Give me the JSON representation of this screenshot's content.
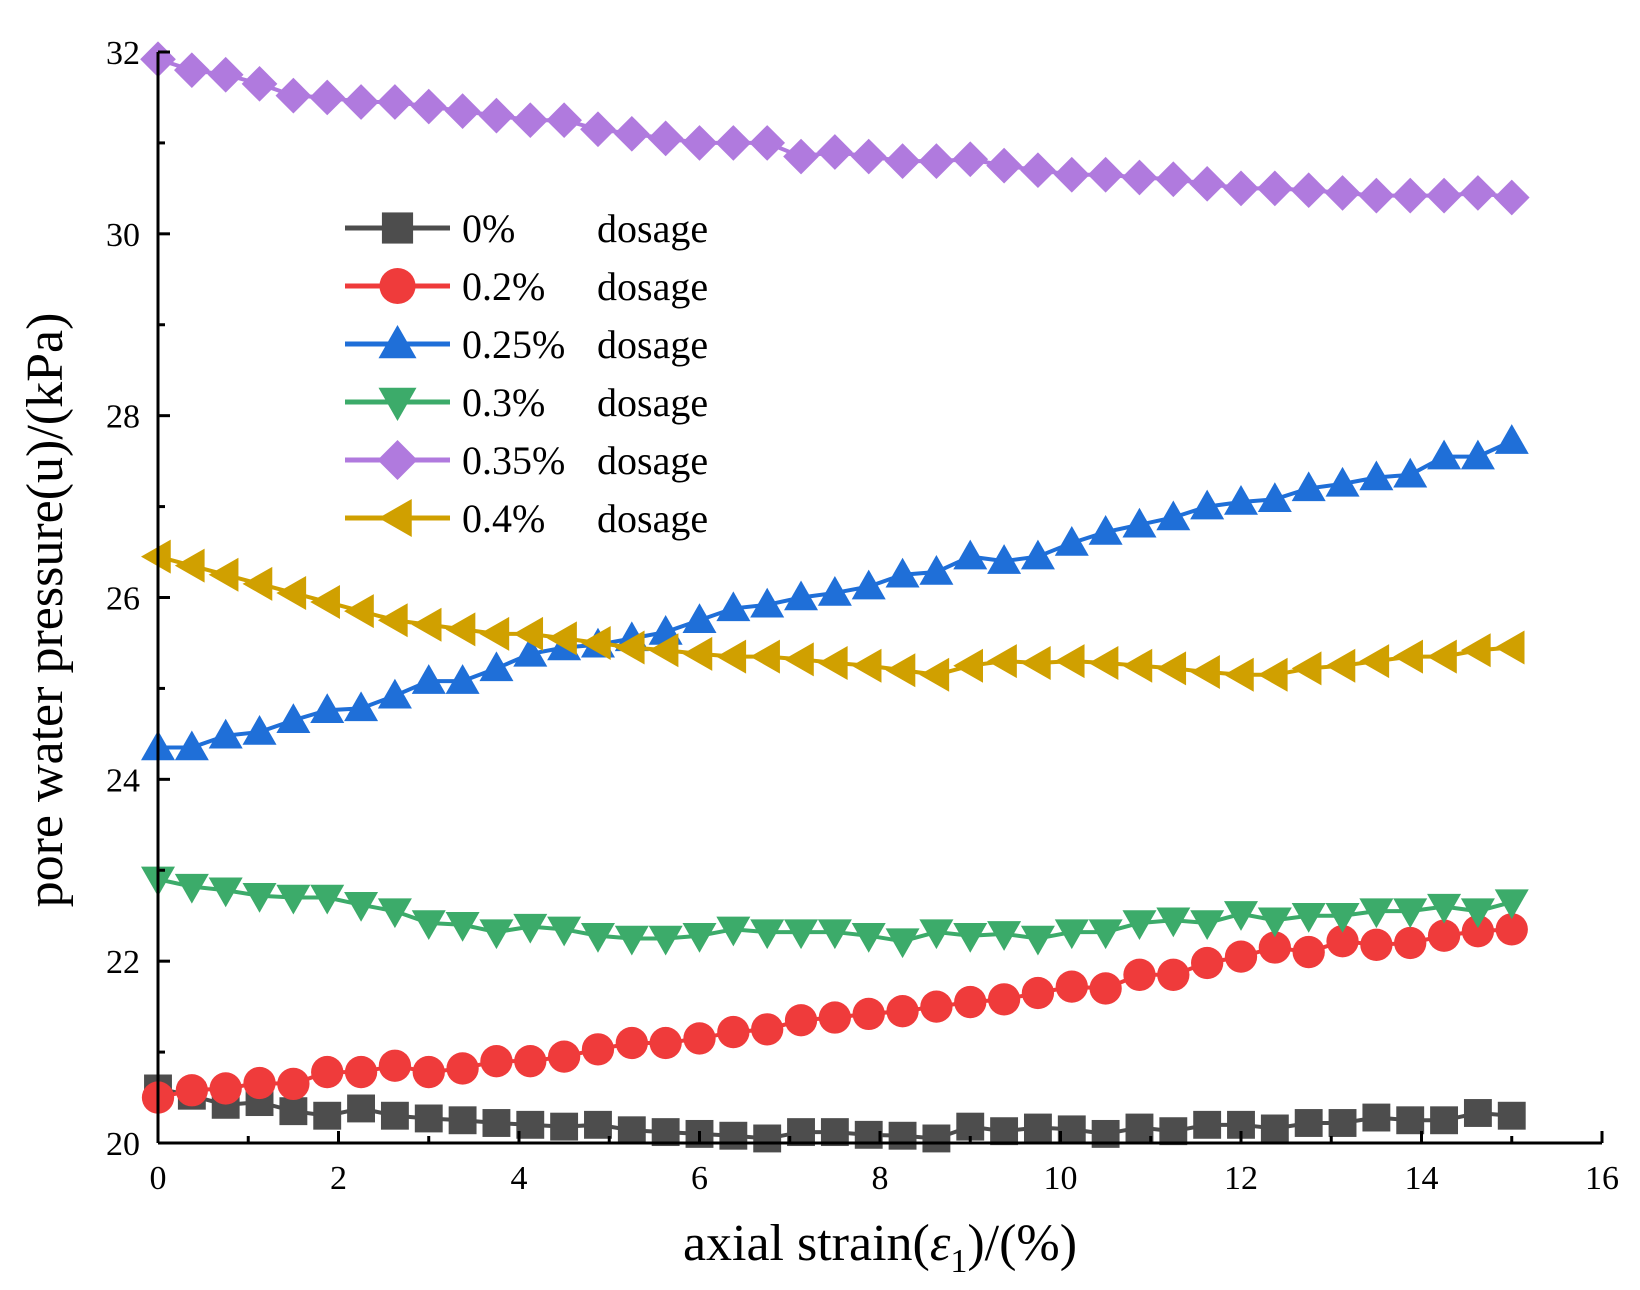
{
  "chart_data": {
    "type": "line",
    "title": "",
    "xlabel": "axial strain(ε1)/(%)",
    "xlabel_parts": {
      "main": "axial strain(",
      "symbol": "ε",
      "sub": "1",
      "tail": ")/(%)"
    },
    "ylabel": "pore water pressure(u)/(kPa)",
    "xlim": [
      0,
      16
    ],
    "ylim": [
      20,
      32
    ],
    "xticks": [
      0,
      2,
      4,
      6,
      8,
      10,
      12,
      14,
      16
    ],
    "yticks": [
      20,
      22,
      24,
      26,
      28,
      30,
      32
    ],
    "grid": false,
    "legend_position": "upper-left",
    "x": [
      0,
      0.375,
      0.75,
      1.125,
      1.5,
      1.875,
      2.25,
      2.625,
      3.0,
      3.375,
      3.75,
      4.125,
      4.5,
      4.875,
      5.25,
      5.625,
      6.0,
      6.375,
      6.75,
      7.125,
      7.5,
      7.875,
      8.25,
      8.625,
      9.0,
      9.375,
      9.75,
      10.125,
      10.5,
      10.875,
      11.25,
      11.625,
      12.0,
      12.375,
      12.75,
      13.125,
      13.5,
      13.875,
      14.25,
      14.625,
      15.0
    ],
    "series": [
      {
        "name": "0%",
        "legend_label": "0%",
        "legend_suffix": "dosage",
        "color": "#4d4d4d",
        "marker": "square",
        "values": [
          20.6,
          20.52,
          20.42,
          20.45,
          20.35,
          20.3,
          20.38,
          20.3,
          20.27,
          20.25,
          20.22,
          20.2,
          20.18,
          20.2,
          20.14,
          20.12,
          20.1,
          20.08,
          20.05,
          20.12,
          20.12,
          20.09,
          20.08,
          20.05,
          20.18,
          20.13,
          20.17,
          20.15,
          20.1,
          20.17,
          20.13,
          20.2,
          20.2,
          20.16,
          20.22,
          20.22,
          20.28,
          20.25,
          20.25,
          20.33,
          20.3
        ]
      },
      {
        "name": "0.2%",
        "legend_label": "0.2%",
        "legend_suffix": "dosage",
        "color": "#ef3b3b",
        "marker": "circle",
        "values": [
          20.5,
          20.58,
          20.6,
          20.66,
          20.65,
          20.78,
          20.78,
          20.85,
          20.78,
          20.82,
          20.9,
          20.9,
          20.95,
          21.03,
          21.1,
          21.1,
          21.15,
          21.22,
          21.25,
          21.35,
          21.38,
          21.42,
          21.45,
          21.5,
          21.55,
          21.58,
          21.65,
          21.72,
          21.7,
          21.85,
          21.85,
          21.98,
          22.05,
          22.15,
          22.1,
          22.22,
          22.18,
          22.2,
          22.28,
          22.33,
          22.35
        ]
      },
      {
        "name": "0.25%",
        "legend_label": "0.25%",
        "legend_suffix": "dosage",
        "color": "#1f6fd8",
        "marker": "triangle-up",
        "values": [
          24.35,
          24.35,
          24.48,
          24.52,
          24.65,
          24.76,
          24.78,
          24.92,
          25.08,
          25.08,
          25.22,
          25.38,
          25.45,
          25.48,
          25.55,
          25.62,
          25.75,
          25.88,
          25.92,
          26.0,
          26.05,
          26.12,
          26.25,
          26.28,
          26.45,
          26.4,
          26.45,
          26.6,
          26.72,
          26.8,
          26.88,
          27.0,
          27.05,
          27.08,
          27.2,
          27.25,
          27.32,
          27.35,
          27.55,
          27.55,
          27.72
        ]
      },
      {
        "name": "0.3%",
        "legend_label": "0.3%",
        "legend_suffix": "dosage",
        "color": "#3cab6a",
        "marker": "triangle-down",
        "values": [
          22.9,
          22.82,
          22.78,
          22.72,
          22.7,
          22.7,
          22.62,
          22.55,
          22.42,
          22.4,
          22.32,
          22.38,
          22.35,
          22.28,
          22.25,
          22.25,
          22.28,
          22.35,
          22.32,
          22.32,
          22.32,
          22.28,
          22.22,
          22.32,
          22.28,
          22.3,
          22.25,
          22.32,
          22.32,
          22.42,
          22.45,
          22.42,
          22.52,
          22.45,
          22.5,
          22.5,
          22.55,
          22.55,
          22.6,
          22.55,
          22.65
        ]
      },
      {
        "name": "0.35%",
        "legend_label": "0.35%",
        "legend_suffix": "dosage",
        "color": "#b07ade",
        "marker": "diamond",
        "values": [
          31.92,
          31.8,
          31.75,
          31.65,
          31.52,
          31.5,
          31.45,
          31.45,
          31.4,
          31.35,
          31.3,
          31.25,
          31.25,
          31.15,
          31.1,
          31.05,
          31.0,
          31.0,
          31.0,
          30.85,
          30.9,
          30.85,
          30.8,
          30.8,
          30.82,
          30.75,
          30.7,
          30.65,
          30.65,
          30.62,
          30.6,
          30.55,
          30.5,
          30.5,
          30.48,
          30.45,
          30.42,
          30.42,
          30.42,
          30.45,
          30.4
        ]
      },
      {
        "name": "0.4%",
        "legend_label": "0.4%",
        "legend_suffix": "dosage",
        "color": "#d0a000",
        "marker": "triangle-left",
        "values": [
          26.45,
          26.35,
          26.25,
          26.15,
          26.05,
          25.95,
          25.85,
          25.75,
          25.7,
          25.65,
          25.6,
          25.6,
          25.55,
          25.5,
          25.45,
          25.42,
          25.38,
          25.35,
          25.35,
          25.32,
          25.28,
          25.25,
          25.2,
          25.15,
          25.25,
          25.3,
          25.28,
          25.3,
          25.28,
          25.25,
          25.22,
          25.18,
          25.15,
          25.15,
          25.22,
          25.25,
          25.3,
          25.35,
          25.35,
          25.42,
          25.45
        ]
      }
    ]
  }
}
